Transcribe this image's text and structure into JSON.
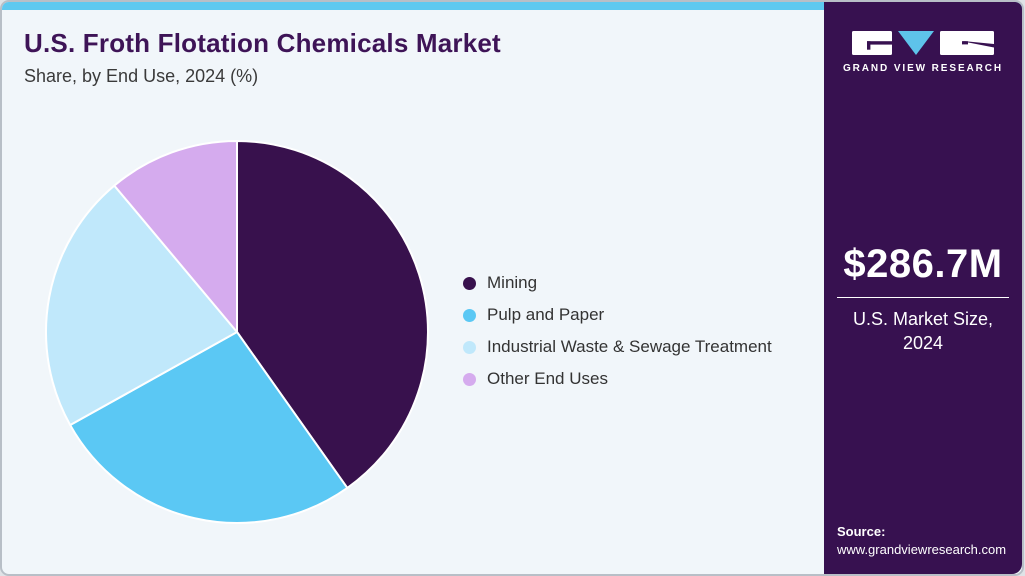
{
  "header": {
    "title": "U.S. Froth Flotation Chemicals Market",
    "subtitle": "Share, by End Use, 2024 (%)"
  },
  "chart_data": {
    "type": "pie",
    "title": "U.S. Froth Flotation Chemicals Market Share, by End Use, 2024 (%)",
    "categories": [
      "Mining",
      "Pulp and Paper",
      "Industrial Waste & Sewage Treatment",
      "Other End Uses"
    ],
    "values": [
      40.2,
      26.7,
      22.0,
      11.1
    ],
    "unit": "%",
    "colors": [
      "#38114d",
      "#5bc8f4",
      "#c0e8fb",
      "#d5abee"
    ],
    "start_angle_deg": 0,
    "direction": "clockwise",
    "legend_position": "right",
    "data_labels_shown": false
  },
  "sidebar": {
    "logo": {
      "brand": "GRAND VIEW RESEARCH"
    },
    "market_size": "$286.7M",
    "market_size_label": "U.S. Market Size, 2024",
    "source_label": "Source:",
    "source_url": "www.grandviewresearch.com"
  },
  "theme": {
    "accent": "#5ec9f0",
    "sidebar_bg": "#371150",
    "card_bg": "#f1f6fa",
    "title_color": "#3e1457",
    "text_color": "#3a3a3a",
    "legend_text": "#333333",
    "white": "#ffffff"
  }
}
